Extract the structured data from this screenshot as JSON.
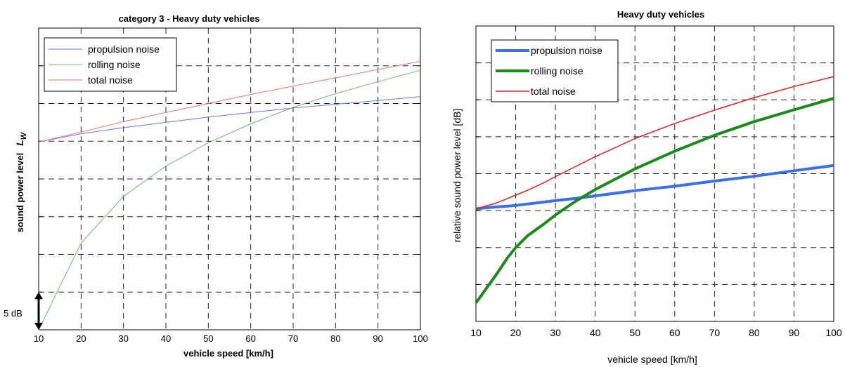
{
  "chart_data": [
    {
      "type": "line",
      "title": "category 3 - Heavy duty vehicles",
      "xlabel": "vehicle speed [km/h]",
      "ylabel": "sound power level",
      "ylabel_symbol": "L",
      "ylabel_subscript": "W",
      "x": [
        10,
        20,
        30,
        40,
        50,
        60,
        70,
        80,
        90,
        100
      ],
      "xticks": [
        "10",
        "20",
        "30",
        "40",
        "50",
        "60",
        "70",
        "80",
        "90",
        "100"
      ],
      "xlim": [
        10,
        100
      ],
      "ylim": [
        0,
        40
      ],
      "y_tick_labels": "none",
      "scale_marker": {
        "label": "5 dB",
        "from": 0,
        "to": 5
      },
      "grid": true,
      "legend_position": "top-left",
      "series": [
        {
          "name": "propulsion noise",
          "color": "#6f6fe8",
          "values": [
            24.9,
            26.0,
            26.8,
            27.5,
            28.2,
            28.8,
            29.4,
            29.9,
            30.4,
            30.9
          ]
        },
        {
          "name": "rolling noise",
          "color": "#6fb86f",
          "values": [
            0.0,
            11.5,
            17.7,
            21.7,
            24.8,
            27.3,
            29.5,
            31.3,
            32.9,
            34.4
          ]
        },
        {
          "name": "total noise",
          "color": "#ee6f6f",
          "values": [
            24.9,
            26.2,
            27.6,
            28.8,
            30.0,
            31.2,
            32.3,
            33.4,
            34.5,
            35.6
          ]
        }
      ]
    },
    {
      "type": "line",
      "title": "Heavy duty vehicles",
      "xlabel": "vehicle speed [km/h]",
      "ylabel": "relative sound power level [dB]",
      "x": [
        10,
        15,
        18,
        20,
        23,
        27,
        30,
        35,
        40,
        50,
        60,
        70,
        80,
        90,
        100
      ],
      "xticks": [
        "10",
        "20",
        "30",
        "40",
        "50",
        "60",
        "70",
        "80",
        "90",
        "100"
      ],
      "xlim": [
        10,
        100
      ],
      "ylim": [
        0,
        80
      ],
      "y_tick_labels": "none",
      "grid": true,
      "legend_position": "top-left",
      "series": [
        {
          "name": "propulsion noise",
          "color": "#3a6fe6",
          "values": [
            30.5,
            31.0,
            31.2,
            31.4,
            31.8,
            32.3,
            32.7,
            33.3,
            34.0,
            35.4,
            36.6,
            38.0,
            39.3,
            40.8,
            42.2
          ]
        },
        {
          "name": "rolling noise",
          "color": "#1b8a1b",
          "values": [
            5.0,
            12.5,
            17.3,
            20.0,
            23.2,
            26.3,
            28.8,
            32.5,
            35.7,
            41.3,
            46.1,
            50.4,
            54.1,
            57.3,
            60.4
          ]
        },
        {
          "name": "total noise",
          "color": "#e02020",
          "values": [
            30.5,
            32.0,
            33.3,
            34.2,
            35.5,
            37.5,
            39.2,
            41.9,
            44.6,
            49.5,
            53.6,
            57.2,
            60.6,
            63.6,
            66.3
          ]
        }
      ]
    }
  ]
}
